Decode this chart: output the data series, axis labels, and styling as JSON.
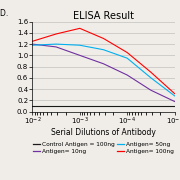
{
  "title": "ELISA Result",
  "xlabel": "Serial Dilutions of Antibody",
  "ylabel": "O.D.",
  "ylim": [
    0,
    1.6
  ],
  "yticks": [
    0,
    0.2,
    0.4,
    0.6,
    0.8,
    1.0,
    1.2,
    1.4,
    1.6
  ],
  "lines": [
    {
      "label": "Control Antigen = 100ng",
      "color": "#1a1a1a",
      "x": [
        -2,
        -2.5,
        -3,
        -3.5,
        -4,
        -4.5,
        -5
      ],
      "y": [
        0.1,
        0.1,
        0.1,
        0.1,
        0.1,
        0.1,
        0.1
      ]
    },
    {
      "label": "Antigen= 10ng",
      "color": "#7030a0",
      "x": [
        -2,
        -2.5,
        -3,
        -3.5,
        -4,
        -4.5,
        -5
      ],
      "y": [
        1.2,
        1.15,
        1.0,
        0.85,
        0.65,
        0.38,
        0.18
      ]
    },
    {
      "label": "Antigen= 50ng",
      "color": "#00b0f0",
      "x": [
        -2,
        -2.5,
        -3,
        -3.5,
        -4,
        -4.5,
        -5
      ],
      "y": [
        1.18,
        1.2,
        1.18,
        1.1,
        0.95,
        0.6,
        0.28
      ]
    },
    {
      "label": "Antigen= 100ng",
      "color": "#ff0000",
      "x": [
        -2,
        -2.5,
        -3,
        -3.5,
        -4,
        -4.5,
        -5
      ],
      "y": [
        1.25,
        1.38,
        1.48,
        1.3,
        1.05,
        0.7,
        0.32
      ]
    }
  ],
  "legend_order": [
    {
      "label": "Control Antigen = 100ng",
      "color": "#1a1a1a"
    },
    {
      "label": "Antigen= 10ng",
      "color": "#7030a0"
    },
    {
      "label": "Antigen= 50ng",
      "color": "#00b0f0"
    },
    {
      "label": "Antigen= 100ng",
      "color": "#ff0000"
    }
  ],
  "background_color": "#f0ede8",
  "title_fontsize": 7,
  "axis_fontsize": 5.5,
  "tick_fontsize": 5,
  "legend_fontsize": 4.2
}
